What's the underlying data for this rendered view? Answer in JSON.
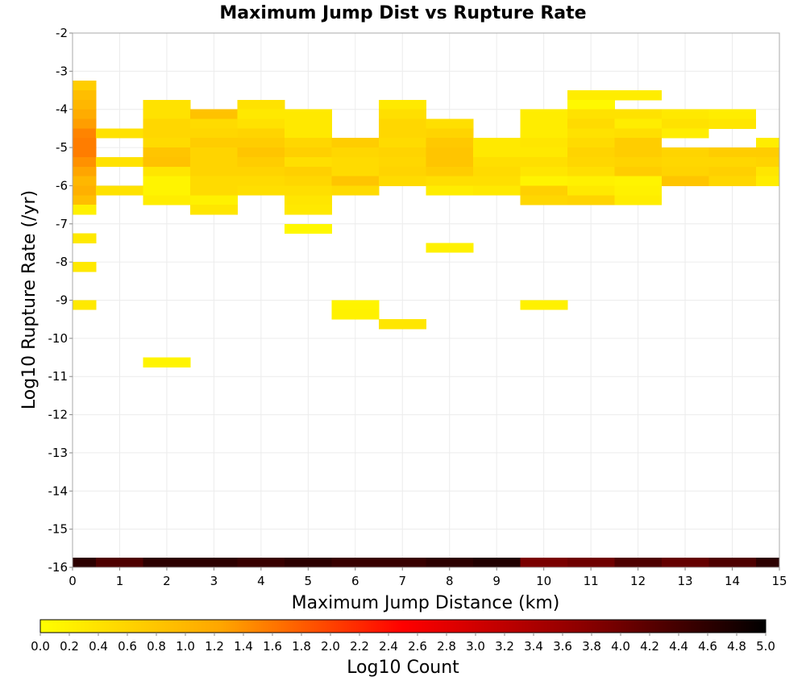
{
  "chart_data": {
    "type": "heatmap",
    "title": "Maximum Jump Dist vs Rupture Rate",
    "xlabel": "Maximum Jump Distance (km)",
    "ylabel": "Log10 Rupture Rate (/yr)",
    "xlim": [
      0,
      15
    ],
    "ylim": [
      -16,
      -2
    ],
    "x_ticks": [
      "0",
      "1",
      "2",
      "3",
      "4",
      "5",
      "6",
      "7",
      "8",
      "9",
      "10",
      "11",
      "12",
      "13",
      "14",
      "15"
    ],
    "y_ticks": [
      "-2",
      "-3",
      "-4",
      "-5",
      "-6",
      "-7",
      "-8",
      "-9",
      "-10",
      "-11",
      "-12",
      "-13",
      "-14",
      "-15",
      "-16"
    ],
    "grid": true,
    "bin_width_x": 1,
    "bin_height_y": 0.25,
    "colorbar": {
      "label": "Log10 Count",
      "range": [
        0,
        5
      ],
      "ticks": [
        "0.0",
        "0.2",
        "0.4",
        "0.6",
        "0.8",
        "1.0",
        "1.2",
        "1.4",
        "1.6",
        "1.8",
        "2.0",
        "2.2",
        "2.4",
        "2.6",
        "2.8",
        "3.0",
        "3.2",
        "3.4",
        "3.6",
        "3.8",
        "4.0",
        "4.2",
        "4.4",
        "4.6",
        "4.8",
        "5.0"
      ],
      "colormap": [
        "#ffff00",
        "#ffa500",
        "#ff0000",
        "#8b0000",
        "#000000"
      ]
    },
    "cells": [
      [
        0,
        -3.375,
        0.7
      ],
      [
        0,
        -3.625,
        0.9
      ],
      [
        0,
        -3.875,
        1.0
      ],
      [
        0,
        -4.125,
        1.15
      ],
      [
        0,
        -4.375,
        1.3
      ],
      [
        0,
        -4.625,
        1.5
      ],
      [
        0,
        -4.875,
        1.55
      ],
      [
        0,
        -5.125,
        1.55
      ],
      [
        0,
        -5.375,
        1.4
      ],
      [
        0,
        -5.625,
        1.25
      ],
      [
        0,
        -5.875,
        1.0
      ],
      [
        0,
        -6.125,
        1.1
      ],
      [
        0,
        -6.375,
        0.9
      ],
      [
        0,
        -6.625,
        0.2
      ],
      [
        0,
        -7.375,
        0.3
      ],
      [
        0,
        -8.125,
        0.3
      ],
      [
        0,
        -9.125,
        0.3
      ],
      [
        0,
        -15.875,
        4.6
      ],
      [
        1,
        -4.625,
        0.4
      ],
      [
        1,
        -5.375,
        0.4
      ],
      [
        1,
        -6.125,
        0.4
      ],
      [
        1,
        -15.875,
        4.3
      ],
      [
        2,
        -3.875,
        0.4
      ],
      [
        2,
        -4.125,
        0.4
      ],
      [
        2,
        -4.375,
        0.55
      ],
      [
        2,
        -4.625,
        0.55
      ],
      [
        2,
        -4.875,
        0.5
      ],
      [
        2,
        -5.125,
        0.8
      ],
      [
        2,
        -5.375,
        0.85
      ],
      [
        2,
        -5.625,
        0.35
      ],
      [
        2,
        -5.875,
        0.15
      ],
      [
        2,
        -6.125,
        0.15
      ],
      [
        2,
        -6.375,
        0.25
      ],
      [
        2,
        -10.625,
        0.15
      ],
      [
        2,
        -15.875,
        4.6
      ],
      [
        3,
        -4.125,
        0.85
      ],
      [
        3,
        -4.375,
        0.5
      ],
      [
        3,
        -4.625,
        0.55
      ],
      [
        3,
        -4.875,
        0.7
      ],
      [
        3,
        -5.125,
        0.6
      ],
      [
        3,
        -5.375,
        0.6
      ],
      [
        3,
        -5.625,
        0.6
      ],
      [
        3,
        -5.875,
        0.5
      ],
      [
        3,
        -6.125,
        0.5
      ],
      [
        3,
        -6.375,
        0.2
      ],
      [
        3,
        -6.625,
        0.35
      ],
      [
        3,
        -15.875,
        4.6
      ],
      [
        4,
        -3.875,
        0.4
      ],
      [
        4,
        -4.125,
        0.3
      ],
      [
        4,
        -4.375,
        0.4
      ],
      [
        4,
        -4.625,
        0.6
      ],
      [
        4,
        -4.875,
        0.7
      ],
      [
        4,
        -5.125,
        0.8
      ],
      [
        4,
        -5.375,
        0.7
      ],
      [
        4,
        -5.625,
        0.6
      ],
      [
        4,
        -5.875,
        0.5
      ],
      [
        4,
        -6.125,
        0.45
      ],
      [
        4,
        -15.875,
        4.5
      ],
      [
        5,
        -4.125,
        0.3
      ],
      [
        5,
        -4.375,
        0.3
      ],
      [
        5,
        -4.625,
        0.3
      ],
      [
        5,
        -4.875,
        0.55
      ],
      [
        5,
        -5.125,
        0.65
      ],
      [
        5,
        -5.375,
        0.45
      ],
      [
        5,
        -5.625,
        0.65
      ],
      [
        5,
        -5.875,
        0.55
      ],
      [
        5,
        -6.125,
        0.45
      ],
      [
        5,
        -6.375,
        0.35
      ],
      [
        5,
        -6.625,
        0.3
      ],
      [
        5,
        -7.125,
        0.1
      ],
      [
        5,
        -15.875,
        4.6
      ],
      [
        6,
        -4.875,
        0.7
      ],
      [
        6,
        -5.125,
        0.55
      ],
      [
        6,
        -5.375,
        0.5
      ],
      [
        6,
        -5.625,
        0.5
      ],
      [
        6,
        -5.875,
        0.8
      ],
      [
        6,
        -6.125,
        0.5
      ],
      [
        6,
        -9.125,
        0.15
      ],
      [
        6,
        -9.375,
        0.2
      ],
      [
        6,
        -15.875,
        4.5
      ],
      [
        7,
        -3.875,
        0.3
      ],
      [
        7,
        -4.125,
        0.45
      ],
      [
        7,
        -4.375,
        0.55
      ],
      [
        7,
        -4.625,
        0.55
      ],
      [
        7,
        -4.875,
        0.5
      ],
      [
        7,
        -5.125,
        0.6
      ],
      [
        7,
        -5.375,
        0.55
      ],
      [
        7,
        -5.625,
        0.6
      ],
      [
        7,
        -5.875,
        0.5
      ],
      [
        7,
        -9.625,
        0.35
      ],
      [
        7,
        -15.875,
        4.5
      ],
      [
        8,
        -4.375,
        0.45
      ],
      [
        8,
        -4.625,
        0.6
      ],
      [
        8,
        -4.875,
        0.75
      ],
      [
        8,
        -5.125,
        0.8
      ],
      [
        8,
        -5.375,
        0.8
      ],
      [
        8,
        -5.625,
        0.7
      ],
      [
        8,
        -5.875,
        0.45
      ],
      [
        8,
        -6.125,
        0.25
      ],
      [
        8,
        -7.625,
        0.2
      ],
      [
        8,
        -15.875,
        4.6
      ],
      [
        9,
        -4.875,
        0.3
      ],
      [
        9,
        -5.125,
        0.3
      ],
      [
        9,
        -5.375,
        0.45
      ],
      [
        9,
        -5.625,
        0.5
      ],
      [
        9,
        -5.875,
        0.45
      ],
      [
        9,
        -6.125,
        0.3
      ],
      [
        9,
        -15.875,
        4.7
      ],
      [
        10,
        -4.125,
        0.25
      ],
      [
        10,
        -4.375,
        0.25
      ],
      [
        10,
        -4.625,
        0.25
      ],
      [
        10,
        -4.875,
        0.35
      ],
      [
        10,
        -5.125,
        0.3
      ],
      [
        10,
        -5.375,
        0.45
      ],
      [
        10,
        -5.625,
        0.35
      ],
      [
        10,
        -5.875,
        0.15
      ],
      [
        10,
        -6.125,
        0.65
      ],
      [
        10,
        -6.375,
        0.55
      ],
      [
        10,
        -9.125,
        0.2
      ],
      [
        10,
        -15.875,
        3.9
      ],
      [
        11,
        -3.625,
        0.25
      ],
      [
        11,
        -3.875,
        0.1
      ],
      [
        11,
        -4.125,
        0.4
      ],
      [
        11,
        -4.375,
        0.5
      ],
      [
        11,
        -4.625,
        0.4
      ],
      [
        11,
        -4.875,
        0.5
      ],
      [
        11,
        -5.125,
        0.6
      ],
      [
        11,
        -5.375,
        0.55
      ],
      [
        11,
        -5.625,
        0.45
      ],
      [
        11,
        -5.875,
        0.2
      ],
      [
        11,
        -6.125,
        0.3
      ],
      [
        11,
        -6.375,
        0.6
      ],
      [
        11,
        -15.875,
        4.0
      ],
      [
        12,
        -3.625,
        0.25
      ],
      [
        12,
        -4.125,
        0.4
      ],
      [
        12,
        -4.375,
        0.25
      ],
      [
        12,
        -4.625,
        0.45
      ],
      [
        12,
        -4.875,
        0.7
      ],
      [
        12,
        -5.125,
        0.7
      ],
      [
        12,
        -5.375,
        0.6
      ],
      [
        12,
        -5.625,
        0.7
      ],
      [
        12,
        -5.875,
        0.15
      ],
      [
        12,
        -6.125,
        0.2
      ],
      [
        12,
        -6.375,
        0.25
      ],
      [
        12,
        -15.875,
        4.3
      ],
      [
        13,
        -4.125,
        0.3
      ],
      [
        13,
        -4.375,
        0.4
      ],
      [
        13,
        -4.625,
        0.25
      ],
      [
        13,
        -5.125,
        0.6
      ],
      [
        13,
        -5.375,
        0.55
      ],
      [
        13,
        -5.625,
        0.6
      ],
      [
        13,
        -5.875,
        0.8
      ],
      [
        13,
        -15.875,
        4.1
      ],
      [
        14,
        -4.125,
        0.25
      ],
      [
        14,
        -4.375,
        0.35
      ],
      [
        14,
        -5.125,
        0.7
      ],
      [
        14,
        -5.375,
        0.55
      ],
      [
        14,
        -5.625,
        0.65
      ],
      [
        14,
        -5.875,
        0.55
      ],
      [
        14,
        -15.875,
        4.3
      ],
      [
        15,
        -4.875,
        0.25
      ],
      [
        15,
        -5.125,
        0.7
      ],
      [
        15,
        -5.375,
        0.6
      ],
      [
        15,
        -5.625,
        0.35
      ],
      [
        15,
        -5.875,
        0.25
      ],
      [
        15,
        -15.875,
        4.6
      ]
    ]
  }
}
